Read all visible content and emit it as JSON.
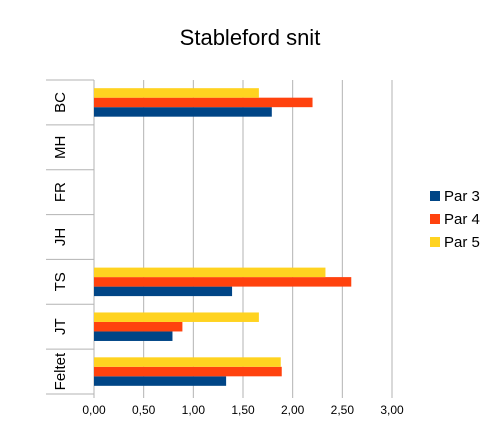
{
  "chart_data": {
    "type": "bar",
    "orientation": "horizontal",
    "title": "Stableford snit",
    "categories": [
      "Feltet",
      "JT",
      "TS",
      "JH",
      "FR",
      "MH",
      "BC"
    ],
    "series": [
      {
        "name": "Par 3",
        "color": "#004586",
        "values": [
          1.33,
          0.79,
          1.39,
          0,
          0,
          0,
          1.79
        ]
      },
      {
        "name": "Par 4",
        "color": "#ff420e",
        "values": [
          1.89,
          0.89,
          2.59,
          0,
          0,
          0,
          2.2
        ]
      },
      {
        "name": "Par 5",
        "color": "#ffd320",
        "values": [
          1.88,
          1.66,
          2.33,
          0,
          0,
          0,
          1.66
        ]
      }
    ],
    "xlim": [
      0,
      3
    ],
    "xticks": [
      "0,00",
      "0,50",
      "1,00",
      "1,50",
      "2,00",
      "2,50",
      "3,00"
    ],
    "grid": true,
    "legend_position": "right"
  }
}
